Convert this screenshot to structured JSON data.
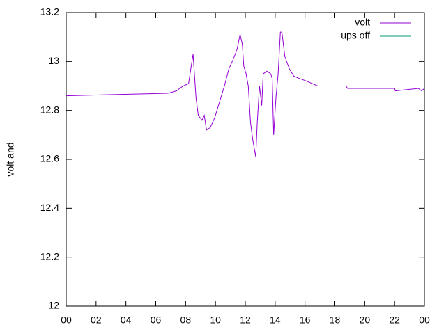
{
  "chart_data": {
    "type": "line",
    "y_label": "volt and",
    "x": [
      0,
      6.8,
      7.4,
      7.6,
      7.85,
      8.2,
      8.5,
      8.7,
      8.85,
      9.1,
      9.25,
      9.4,
      9.65,
      9.95,
      10.25,
      10.6,
      10.9,
      11.2,
      11.45,
      11.65,
      11.8,
      11.9,
      12.05,
      12.2,
      12.35,
      12.5,
      12.7,
      12.8,
      12.95,
      13.1,
      13.2,
      13.45,
      13.7,
      13.8,
      13.9,
      14.05,
      14.2,
      14.35,
      14.45,
      14.65,
      14.95,
      15.25,
      15.65,
      16.1,
      16.85,
      18.75,
      18.85,
      22,
      22.05,
      23.6,
      23.8,
      24
    ],
    "series": [
      {
        "name": "volt",
        "color": "#9400d3",
        "values": [
          12.86,
          12.87,
          12.88,
          12.89,
          12.9,
          12.91,
          13.03,
          12.85,
          12.78,
          12.76,
          12.78,
          12.72,
          12.73,
          12.77,
          12.83,
          12.9,
          12.97,
          13.01,
          13.05,
          13.11,
          13.07,
          12.98,
          12.95,
          12.9,
          12.75,
          12.68,
          12.61,
          12.75,
          12.9,
          12.82,
          12.95,
          12.96,
          12.95,
          12.93,
          12.7,
          12.85,
          12.95,
          13.12,
          13.12,
          13.02,
          12.97,
          12.94,
          12.93,
          12.92,
          12.9,
          12.9,
          12.89,
          12.89,
          12.88,
          12.89,
          12.88,
          12.89
        ]
      },
      {
        "name": "ups off",
        "color": "#009e73",
        "values": [
          null,
          null,
          null,
          null,
          null,
          null,
          null,
          null,
          null,
          null,
          null,
          null,
          null,
          null,
          null,
          null,
          null,
          null,
          null,
          null,
          null,
          null,
          null,
          null,
          null,
          null,
          null,
          null,
          null,
          null,
          null,
          null,
          null,
          null,
          null,
          null,
          null,
          null,
          null,
          null,
          null,
          null,
          null,
          null,
          null,
          null,
          null,
          null,
          null,
          null,
          null,
          null
        ]
      }
    ],
    "xlim": [
      0,
      24
    ],
    "xticks": [
      {
        "value": 0,
        "label": "00"
      },
      {
        "value": 2,
        "label": "02"
      },
      {
        "value": 4,
        "label": "04"
      },
      {
        "value": 6,
        "label": "06"
      },
      {
        "value": 8,
        "label": "08"
      },
      10,
      12,
      14,
      16,
      18,
      20,
      22,
      {
        "value": 24,
        "label": "00"
      }
    ],
    "ylim": [
      12,
      13.2
    ],
    "yticks": [
      12,
      12.2,
      12.4,
      12.6,
      12.8,
      13,
      13.2
    ],
    "legend": "top-right"
  }
}
